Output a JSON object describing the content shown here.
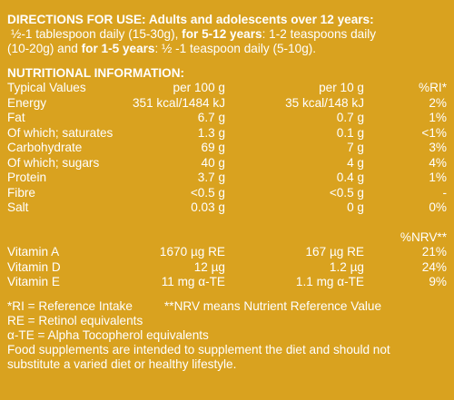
{
  "directions": {
    "title": "DIRECTIONS FOR USE: Adults and adolescents over 12 years:",
    "line1_a": "½-1 tablespoon daily (15-30g), ",
    "line1_b": "for 5-12 years",
    "line1_c": ": 1-2 teaspoons daily",
    "line2_a": "(10-20g) and ",
    "line2_b": "for 1-5 years",
    "line2_c": ": ½ -1 teaspoon daily (5-10g)."
  },
  "nutrition": {
    "title": "NUTRITIONAL INFORMATION:",
    "headers": [
      "Typical Values",
      "per 100 g",
      "per 10 g",
      "%RI*"
    ],
    "rows": [
      [
        "Energy",
        "351 kcal/1484 kJ",
        "35 kcal/148 kJ",
        "2%"
      ],
      [
        "Fat",
        "6.7 g",
        "0.7 g",
        "1%"
      ],
      [
        "Of which; saturates",
        "1.3 g",
        "0.1 g",
        "<1%"
      ],
      [
        "Carbohydrate",
        "69 g",
        "7 g",
        "3%"
      ],
      [
        "Of which; sugars",
        "40 g",
        "4 g",
        "4%"
      ],
      [
        "Protein",
        "3.7 g",
        "0.4 g",
        "1%"
      ],
      [
        "Fibre",
        "<0.5 g",
        "<0.5 g",
        "-"
      ],
      [
        "Salt",
        "0.03 g",
        "0 g",
        "0%"
      ]
    ],
    "nrv_header": "%NRV**",
    "vitamin_rows": [
      [
        "Vitamin A",
        "1670 µg RE",
        "167 µg RE",
        "21%"
      ],
      [
        "Vitamin D",
        "12 µg",
        "1.2 µg",
        "24%"
      ],
      [
        "Vitamin E",
        "11 mg α-TE",
        "1.1 mg α-TE",
        "9%"
      ]
    ]
  },
  "notes": {
    "ri": "*RI = Reference Intake",
    "nrv": "**NRV means Nutrient Reference Value",
    "re": "RE = Retinol equivalents",
    "te": "α-TE = Alpha Tocopherol equivalents",
    "supp1": "Food supplements are intended to supplement the diet and should not",
    "supp2": "substitute a varied diet or healthy lifestyle."
  }
}
